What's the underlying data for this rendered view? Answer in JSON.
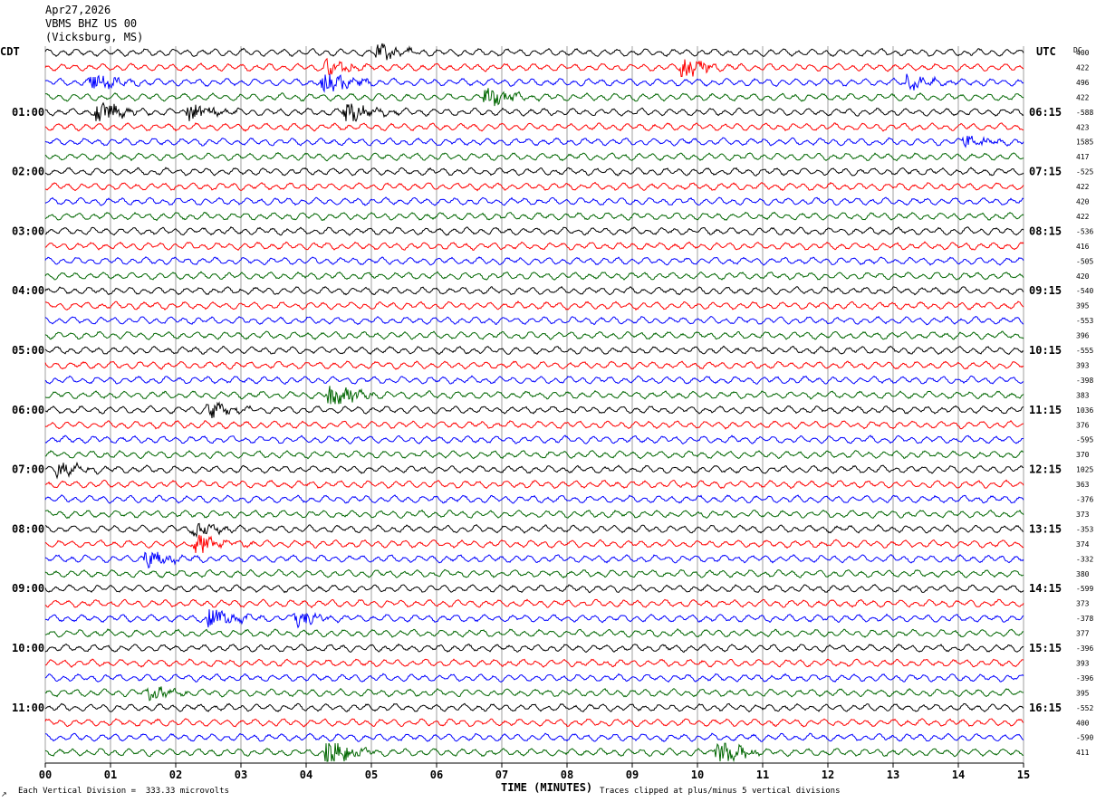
{
  "header": {
    "date": "Apr27,2026",
    "station": "VBMS BHZ US 00",
    "location": "(Vicksburg, MS)"
  },
  "left_tz_label": "CDT",
  "right_tz_label": "UTC",
  "dc_label": "DC",
  "footer": {
    "scale_note": "Each Vertical Division =  333.33 microvolts",
    "xlabel": "TIME (MINUTES)",
    "clip_note": "Traces clipped at plus/minus 5 vertical divisions",
    "corner_mark": "↗"
  },
  "colors": {
    "cycle": [
      "#000000",
      "#ff0000",
      "#0000ff",
      "#006600"
    ],
    "grid": "#888888"
  },
  "chart_data": {
    "type": "line",
    "title": "VBMS BHZ US 00",
    "xlabel": "TIME (MINUTES)",
    "ylabel": "",
    "xlim": [
      0,
      15
    ],
    "x_ticks": [
      "00",
      "01",
      "02",
      "03",
      "04",
      "05",
      "06",
      "07",
      "08",
      "09",
      "10",
      "11",
      "12",
      "13",
      "14",
      "15"
    ],
    "rows_per_hour": 4,
    "left_hour_labels": [
      "01:00",
      "02:00",
      "03:00",
      "04:00",
      "05:00",
      "06:00",
      "07:00",
      "08:00",
      "09:00",
      "10:00",
      "11:00"
    ],
    "right_hour_labels": [
      "06:15",
      "07:15",
      "08:15",
      "09:15",
      "10:15",
      "11:15",
      "12:15",
      "13:15",
      "14:15",
      "15:15",
      "16:15"
    ],
    "dc_offsets": [
      "400",
      "422",
      "496",
      "422",
      "-588",
      "423",
      "1585",
      "417",
      "-525",
      "422",
      "420",
      "422",
      "-536",
      "416",
      "-505",
      "420",
      "-540",
      "395",
      "-553",
      "396",
      "-555",
      "393",
      "-398",
      "383",
      "1036",
      "376",
      "-595",
      "370",
      "1025",
      "363",
      "-376",
      "373",
      "-353",
      "374",
      "-332",
      "380",
      "-599",
      "373",
      "-378",
      "377",
      "-396",
      "393",
      "-396",
      "395",
      "-552",
      "400",
      "-590",
      "411"
    ],
    "num_traces": 48,
    "events": [
      {
        "trace": 0,
        "minute": 5.1,
        "amp": 1.2
      },
      {
        "trace": 1,
        "minute": 9.75,
        "amp": 1.7
      },
      {
        "trace": 1,
        "minute": 4.3,
        "amp": 1.2
      },
      {
        "trace": 2,
        "minute": 0.7,
        "amp": 1.4
      },
      {
        "trace": 2,
        "minute": 4.25,
        "amp": 2.4
      },
      {
        "trace": 2,
        "minute": 13.2,
        "amp": 1.1
      },
      {
        "trace": 3,
        "minute": 6.75,
        "amp": 1.5
      },
      {
        "trace": 4,
        "minute": 0.8,
        "amp": 1.8
      },
      {
        "trace": 4,
        "minute": 2.2,
        "amp": 1.4
      },
      {
        "trace": 4,
        "minute": 4.6,
        "amp": 1.8
      },
      {
        "trace": 6,
        "minute": 14.1,
        "amp": 1.1
      },
      {
        "trace": 23,
        "minute": 4.35,
        "amp": 2.3
      },
      {
        "trace": 24,
        "minute": 2.5,
        "amp": 1.1
      },
      {
        "trace": 28,
        "minute": 0.2,
        "amp": 1.1
      },
      {
        "trace": 32,
        "minute": 2.25,
        "amp": 1.2
      },
      {
        "trace": 33,
        "minute": 2.3,
        "amp": 1.8
      },
      {
        "trace": 34,
        "minute": 1.5,
        "amp": 1.4
      },
      {
        "trace": 38,
        "minute": 2.5,
        "amp": 1.6
      },
      {
        "trace": 38,
        "minute": 3.8,
        "amp": 1.2
      },
      {
        "trace": 43,
        "minute": 1.6,
        "amp": 1.0
      },
      {
        "trace": 47,
        "minute": 4.3,
        "amp": 2.5
      },
      {
        "trace": 47,
        "minute": 10.3,
        "amp": 2.2
      }
    ]
  }
}
